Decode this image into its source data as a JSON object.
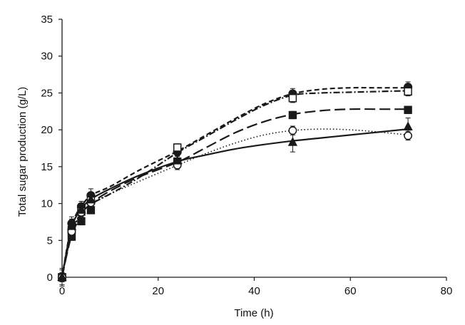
{
  "chart_data": {
    "type": "line",
    "title": "",
    "xlabel": "Time (h)",
    "ylabel": "Total sugar production (g/L)",
    "xlim": [
      0,
      80
    ],
    "ylim": [
      0,
      35
    ],
    "xticks": [
      0,
      20,
      40,
      60,
      80
    ],
    "yticks": [
      0,
      5,
      10,
      15,
      20,
      25,
      30,
      35
    ],
    "grid": false,
    "legend": "none",
    "series": [
      {
        "name": "filled circle",
        "marker": "circle-filled",
        "line_style": "short-dash",
        "x": [
          0,
          2,
          4,
          6,
          24,
          48,
          72
        ],
        "y": [
          0,
          7.3,
          9.6,
          11.1,
          17.0,
          24.9,
          25.8
        ],
        "err": [
          1.0,
          0.9,
          0.7,
          0.9,
          0.5,
          0.7,
          0.7
        ],
        "curve": [
          [
            0,
            0
          ],
          [
            1,
            3.9
          ],
          [
            2,
            7.1
          ],
          [
            3,
            8.6
          ],
          [
            4,
            9.6
          ],
          [
            6,
            11.1
          ],
          [
            10,
            12.3
          ],
          [
            16,
            14.5
          ],
          [
            24,
            17.1
          ],
          [
            30,
            19.3
          ],
          [
            36,
            21.5
          ],
          [
            42,
            23.5
          ],
          [
            48,
            24.9
          ],
          [
            54,
            25.5
          ],
          [
            60,
            25.7
          ],
          [
            66,
            25.7
          ],
          [
            72,
            25.7
          ]
        ]
      },
      {
        "name": "open square",
        "marker": "square-open",
        "line_style": "dash-dot",
        "x": [
          0,
          2,
          4,
          6,
          24,
          48,
          72
        ],
        "y": [
          0,
          6.4,
          8.9,
          10.4,
          17.6,
          24.3,
          25.2
        ],
        "err": [
          0.6,
          0.6,
          0.6,
          0.6,
          0.5,
          0.6,
          0.6
        ],
        "curve": [
          [
            0,
            0
          ],
          [
            1,
            3.3
          ],
          [
            2,
            6.0
          ],
          [
            3,
            7.6
          ],
          [
            4,
            8.7
          ],
          [
            6,
            9.9
          ],
          [
            10,
            11.3
          ],
          [
            16,
            13.5
          ],
          [
            24,
            16.9
          ],
          [
            30,
            19.1
          ],
          [
            36,
            21.3
          ],
          [
            42,
            23.3
          ],
          [
            48,
            24.7
          ],
          [
            54,
            25.0
          ],
          [
            60,
            25.1
          ],
          [
            66,
            25.2
          ],
          [
            72,
            25.3
          ]
        ]
      },
      {
        "name": "filled square",
        "marker": "square-filled",
        "line_style": "long-dash",
        "x": [
          0,
          2,
          4,
          6,
          24,
          48,
          72
        ],
        "y": [
          0,
          5.5,
          7.6,
          9.1,
          15.7,
          22.0,
          22.7
        ],
        "err": [
          0.6,
          0.5,
          0.5,
          0.5,
          0.5,
          0.5,
          0.5
        ],
        "curve": [
          [
            0,
            0
          ],
          [
            1,
            3.1
          ],
          [
            2,
            5.7
          ],
          [
            3,
            7.2
          ],
          [
            4,
            8.4
          ],
          [
            6,
            10.0
          ],
          [
            10,
            11.7
          ],
          [
            16,
            13.6
          ],
          [
            24,
            15.6
          ],
          [
            30,
            17.6
          ],
          [
            36,
            19.6
          ],
          [
            42,
            21.1
          ],
          [
            48,
            22.1
          ],
          [
            54,
            22.6
          ],
          [
            60,
            22.8
          ],
          [
            66,
            22.8
          ],
          [
            72,
            22.8
          ]
        ]
      },
      {
        "name": "open circle",
        "marker": "circle-open",
        "line_style": "dotted",
        "x": [
          0,
          2,
          4,
          6,
          24,
          48,
          72
        ],
        "y": [
          0,
          6.2,
          8.8,
          10.1,
          15.2,
          19.9,
          19.2
        ],
        "err": [
          0.6,
          0.6,
          0.6,
          0.6,
          0.6,
          0.6,
          0.6
        ],
        "curve": [
          [
            0,
            0
          ],
          [
            1,
            3.4
          ],
          [
            2,
            6.0
          ],
          [
            3,
            7.6
          ],
          [
            4,
            8.6
          ],
          [
            6,
            10.0
          ],
          [
            10,
            11.3
          ],
          [
            16,
            13.0
          ],
          [
            24,
            15.2
          ],
          [
            30,
            16.8
          ],
          [
            36,
            18.2
          ],
          [
            42,
            19.3
          ],
          [
            48,
            19.9
          ],
          [
            54,
            20.1
          ],
          [
            60,
            20.0
          ],
          [
            66,
            19.7
          ],
          [
            72,
            19.3
          ]
        ]
      },
      {
        "name": "filled triangle",
        "marker": "triangle-filled",
        "line_style": "solid",
        "x": [
          0,
          2,
          4,
          6,
          24,
          48,
          72
        ],
        "y": [
          0,
          6.9,
          9.1,
          10.5,
          15.8,
          18.3,
          20.4
        ],
        "err": [
          1.2,
          1.0,
          0.8,
          0.8,
          0.6,
          1.3,
          1.2
        ],
        "curve": [
          [
            0,
            0
          ],
          [
            1,
            3.7
          ],
          [
            2,
            6.9
          ],
          [
            3,
            8.3
          ],
          [
            4,
            9.3
          ],
          [
            6,
            10.6
          ],
          [
            10,
            12.0
          ],
          [
            16,
            13.8
          ],
          [
            24,
            15.7
          ],
          [
            30,
            16.6
          ],
          [
            36,
            17.4
          ],
          [
            42,
            18.0
          ],
          [
            48,
            18.5
          ],
          [
            54,
            18.9
          ],
          [
            60,
            19.3
          ],
          [
            66,
            19.7
          ],
          [
            72,
            20.1
          ]
        ]
      }
    ]
  }
}
